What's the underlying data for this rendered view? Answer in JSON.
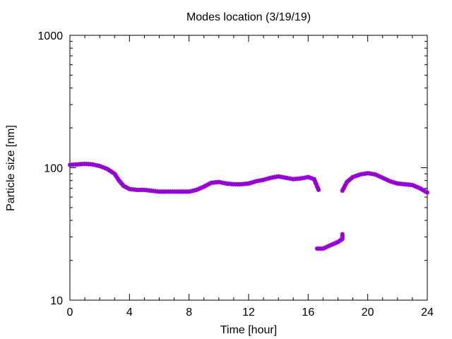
{
  "chart_data": {
    "type": "scatter",
    "title": "Modes location (3/19/19)",
    "xlabel": "Time [hour]",
    "ylabel": "Particle size [nm]",
    "xlim": [
      0,
      24
    ],
    "ylim": [
      10,
      1000
    ],
    "yscale": "log",
    "xticks": [
      "0",
      "4",
      "8",
      "12",
      "16",
      "20",
      "24"
    ],
    "yticks": [
      "10",
      "100",
      "1000"
    ],
    "grid": false,
    "legend": "none",
    "marker_color": "#9400d3",
    "series": [
      {
        "points": [
          [
            0.0,
            105
          ],
          [
            0.5,
            106
          ],
          [
            1.0,
            107
          ],
          [
            1.5,
            106
          ],
          [
            2.0,
            103
          ],
          [
            2.5,
            98
          ],
          [
            3.0,
            90
          ],
          [
            3.3,
            80
          ],
          [
            3.6,
            73
          ],
          [
            4.0,
            69
          ],
          [
            4.5,
            68
          ],
          [
            5.0,
            68
          ],
          [
            5.5,
            67
          ],
          [
            6.0,
            66
          ],
          [
            6.5,
            66
          ],
          [
            7.0,
            66
          ],
          [
            7.5,
            66
          ],
          [
            8.0,
            66
          ],
          [
            8.5,
            68
          ],
          [
            9.0,
            72
          ],
          [
            9.5,
            77
          ],
          [
            10.0,
            78
          ],
          [
            10.5,
            76
          ],
          [
            11.0,
            75
          ],
          [
            11.5,
            75
          ],
          [
            12.0,
            76
          ],
          [
            12.5,
            79
          ],
          [
            13.0,
            81
          ],
          [
            13.5,
            84
          ],
          [
            14.0,
            86
          ],
          [
            14.5,
            84
          ],
          [
            15.0,
            82
          ],
          [
            15.5,
            83
          ],
          [
            16.0,
            85
          ],
          [
            16.4,
            82
          ],
          [
            16.7,
            68
          ],
          [
            16.6,
            24.5
          ],
          [
            17.0,
            24.5
          ],
          [
            17.5,
            26
          ],
          [
            18.0,
            27.5
          ],
          [
            18.3,
            29
          ],
          [
            18.3,
            31.5
          ],
          [
            18.3,
            67
          ],
          [
            18.6,
            78
          ],
          [
            19.0,
            85
          ],
          [
            19.5,
            89
          ],
          [
            20.0,
            91
          ],
          [
            20.5,
            89
          ],
          [
            21.0,
            84
          ],
          [
            21.5,
            79
          ],
          [
            22.0,
            76
          ],
          [
            22.5,
            75
          ],
          [
            23.0,
            74
          ],
          [
            23.5,
            70
          ],
          [
            24.0,
            65
          ]
        ]
      }
    ]
  }
}
